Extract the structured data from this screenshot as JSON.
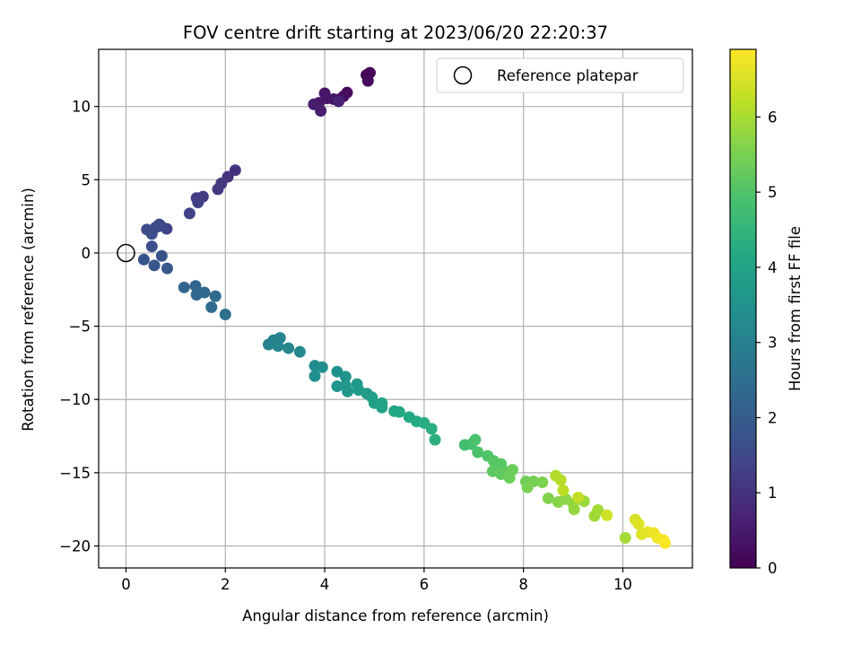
{
  "chart_data": {
    "type": "scatter",
    "title": "FOV centre drift starting at 2023/06/20 22:20:37",
    "xlabel": "Angular distance from reference (arcmin)",
    "ylabel": "Rotation from reference (arcmin)",
    "xlim": [
      -0.55,
      11.4
    ],
    "ylim": [
      -21.5,
      13.9
    ],
    "xticks": [
      0,
      2,
      4,
      6,
      8,
      10
    ],
    "xtick_labels": [
      "0",
      "2",
      "4",
      "6",
      "8",
      "10"
    ],
    "yticks": [
      -20,
      -15,
      -10,
      -5,
      0,
      5,
      10
    ],
    "ytick_labels": [
      "−20",
      "−15",
      "−10",
      "−5",
      "0",
      "5",
      "10"
    ],
    "grid": true,
    "legend": {
      "placement": "upper right",
      "entries": [
        "Reference platepar"
      ]
    },
    "reference_point": {
      "x": 0,
      "y": 0,
      "label": "Reference platepar"
    },
    "colorbar": {
      "label": "Hours from first FF file",
      "colormap": "viridis",
      "range": [
        0,
        6.9
      ],
      "ticks": [
        0,
        1,
        2,
        3,
        4,
        5,
        6
      ],
      "tick_labels": [
        "0",
        "1",
        "2",
        "3",
        "4",
        "5",
        "6"
      ]
    },
    "series": [
      {
        "points": [
          [
            4.84,
            12.15,
            0.05
          ],
          [
            4.91,
            12.3,
            0.1
          ],
          [
            4.87,
            11.75,
            0.15
          ],
          [
            4.45,
            10.95,
            0.2
          ],
          [
            4.38,
            10.7,
            0.25
          ],
          [
            4.3,
            10.5,
            0.3
          ],
          [
            4.18,
            10.5,
            0.35
          ],
          [
            4.0,
            10.9,
            0.4
          ],
          [
            4.05,
            10.55,
            0.45
          ],
          [
            3.88,
            10.25,
            0.5
          ],
          [
            3.78,
            10.15,
            0.55
          ],
          [
            3.92,
            9.7,
            0.6
          ],
          [
            4.28,
            10.35,
            0.65
          ],
          [
            2.2,
            5.65,
            1.0
          ],
          [
            2.05,
            5.2,
            1.05
          ],
          [
            1.92,
            4.75,
            1.1
          ],
          [
            1.85,
            4.35,
            1.15
          ],
          [
            1.55,
            3.85,
            1.2
          ],
          [
            1.42,
            3.75,
            1.25
          ],
          [
            1.45,
            3.45,
            1.3
          ],
          [
            1.28,
            2.7,
            1.35
          ],
          [
            0.82,
            1.65,
            1.4
          ],
          [
            0.7,
            1.85,
            1.45
          ],
          [
            0.6,
            1.75,
            1.5
          ],
          [
            0.67,
            1.95,
            1.55
          ],
          [
            0.42,
            1.6,
            1.6
          ],
          [
            0.52,
            1.3,
            1.65
          ],
          [
            0.52,
            0.45,
            1.7
          ],
          [
            0.72,
            -0.2,
            1.75
          ],
          [
            0.36,
            -0.45,
            1.8
          ],
          [
            0.57,
            -0.85,
            1.85
          ],
          [
            0.83,
            -1.05,
            1.9
          ],
          [
            1.17,
            -2.35,
            2.2
          ],
          [
            1.4,
            -2.25,
            2.25
          ],
          [
            1.42,
            -2.85,
            2.3
          ],
          [
            1.58,
            -2.7,
            2.35
          ],
          [
            1.8,
            -2.95,
            2.4
          ],
          [
            1.72,
            -3.7,
            2.45
          ],
          [
            2.0,
            -4.2,
            2.5
          ],
          [
            2.87,
            -6.25,
            3.0
          ],
          [
            2.97,
            -5.95,
            3.05
          ],
          [
            3.1,
            -5.8,
            3.1
          ],
          [
            3.06,
            -6.35,
            3.15
          ],
          [
            3.27,
            -6.5,
            3.2
          ],
          [
            3.5,
            -6.75,
            3.25
          ],
          [
            3.8,
            -7.7,
            3.3
          ],
          [
            3.95,
            -7.8,
            3.35
          ],
          [
            3.8,
            -8.4,
            3.4
          ],
          [
            4.25,
            -8.1,
            3.45
          ],
          [
            4.42,
            -8.45,
            3.5
          ],
          [
            4.25,
            -9.1,
            3.55
          ],
          [
            4.42,
            -9.05,
            3.6
          ],
          [
            4.46,
            -9.45,
            3.65
          ],
          [
            4.65,
            -8.95,
            3.7
          ],
          [
            4.68,
            -9.35,
            3.75
          ],
          [
            4.85,
            -9.6,
            3.8
          ],
          [
            4.95,
            -9.85,
            3.85
          ],
          [
            5.0,
            -10.25,
            3.9
          ],
          [
            5.15,
            -10.25,
            3.95
          ],
          [
            5.15,
            -10.55,
            4.0
          ],
          [
            5.4,
            -10.8,
            4.05
          ],
          [
            5.5,
            -10.85,
            4.1
          ],
          [
            5.7,
            -11.2,
            4.15
          ],
          [
            5.85,
            -11.5,
            4.2
          ],
          [
            6.0,
            -11.6,
            4.25
          ],
          [
            6.15,
            -12.0,
            4.3
          ],
          [
            6.22,
            -12.75,
            4.35
          ],
          [
            6.82,
            -13.1,
            4.8
          ],
          [
            6.95,
            -13.05,
            4.85
          ],
          [
            7.03,
            -12.75,
            4.9
          ],
          [
            7.08,
            -13.6,
            4.95
          ],
          [
            7.28,
            -13.85,
            5.0
          ],
          [
            7.4,
            -14.2,
            5.05
          ],
          [
            7.55,
            -14.4,
            5.1
          ],
          [
            7.38,
            -14.9,
            5.15
          ],
          [
            7.55,
            -15.1,
            5.2
          ],
          [
            7.68,
            -14.95,
            5.25
          ],
          [
            7.78,
            -14.8,
            5.3
          ],
          [
            7.72,
            -15.35,
            5.35
          ],
          [
            8.05,
            -15.6,
            5.4
          ],
          [
            8.2,
            -15.6,
            5.45
          ],
          [
            8.08,
            -16.0,
            5.5
          ],
          [
            8.38,
            -15.65,
            5.55
          ],
          [
            8.5,
            -16.75,
            5.6
          ],
          [
            8.7,
            -17.0,
            5.65
          ],
          [
            8.85,
            -16.8,
            5.7
          ],
          [
            9.0,
            -17.1,
            5.75
          ],
          [
            9.02,
            -17.5,
            5.8
          ],
          [
            9.22,
            -16.95,
            5.85
          ],
          [
            9.43,
            -17.95,
            5.9
          ],
          [
            9.5,
            -17.55,
            5.95
          ],
          [
            10.05,
            -19.45,
            5.95
          ],
          [
            8.65,
            -15.2,
            6.1
          ],
          [
            8.75,
            -15.5,
            6.15
          ],
          [
            8.8,
            -16.2,
            6.2
          ],
          [
            9.1,
            -16.7,
            6.25
          ],
          [
            9.68,
            -17.9,
            6.4
          ],
          [
            10.25,
            -18.2,
            6.5
          ],
          [
            10.32,
            -18.5,
            6.55
          ],
          [
            10.38,
            -19.2,
            6.6
          ],
          [
            10.5,
            -19.05,
            6.65
          ],
          [
            10.62,
            -19.1,
            6.7
          ],
          [
            10.7,
            -19.45,
            6.75
          ],
          [
            10.82,
            -19.6,
            6.8
          ],
          [
            10.85,
            -19.8,
            6.85
          ]
        ]
      }
    ]
  }
}
